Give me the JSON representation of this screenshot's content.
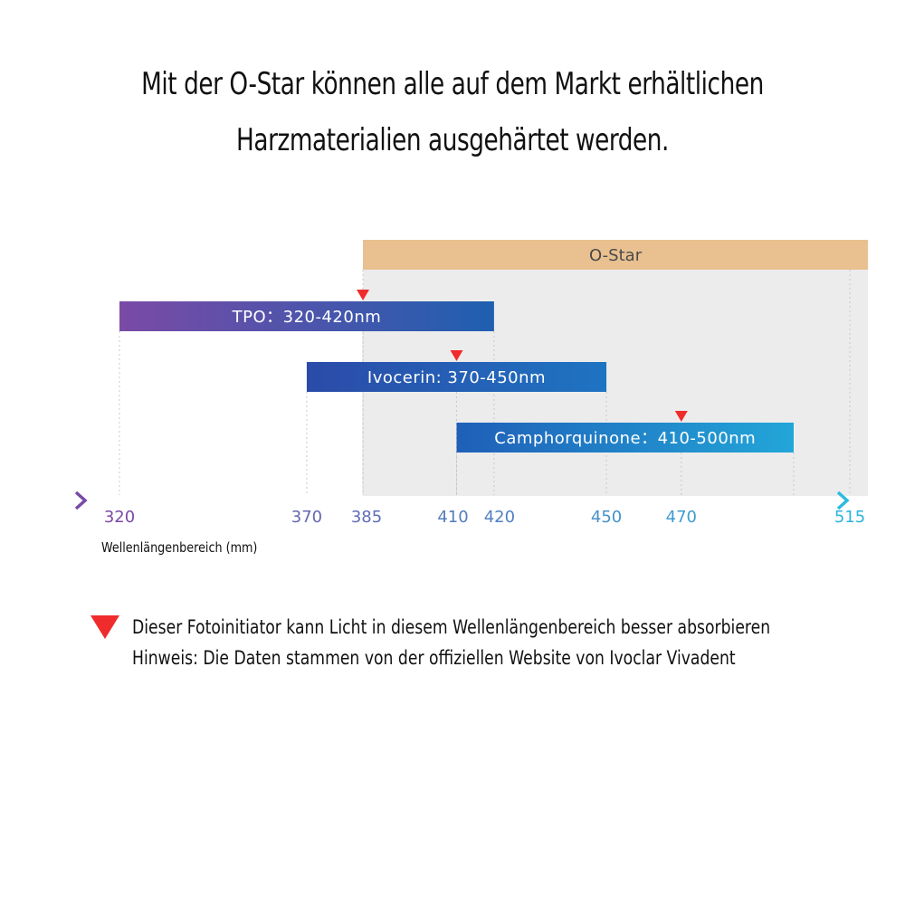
{
  "headline": {
    "line1": "Mit der O-Star können alle auf dem Markt erhältlichen",
    "line2": "Harzmaterialien ausgehärtet werden."
  },
  "chart_data": {
    "type": "range-bar",
    "xlabel": "Wellenlängenbereich (mm)",
    "xlim": [
      300,
      530
    ],
    "x_ticks": [
      320,
      370,
      385,
      410,
      420,
      450,
      470,
      515
    ],
    "band": {
      "label": "O-Star",
      "start": 385,
      "end": 515,
      "color": "#e9c08f"
    },
    "series": [
      {
        "label": "TPO：320-420nm",
        "start": 320,
        "end": 420,
        "peak": 385,
        "color_start": "#7a4aa6",
        "color_end": "#1f5fb0"
      },
      {
        "label": "Ivocerin: 370-450nm",
        "start": 370,
        "end": 450,
        "peak": 410,
        "color_start": "#2b4ba8",
        "color_end": "#1e74c2"
      },
      {
        "label": "Camphorquinone：410-500nm",
        "start": 410,
        "end": 500,
        "peak": 470,
        "color_start": "#1f5fb8",
        "color_end": "#22a6d8"
      }
    ],
    "colors": {
      "peak_marker": "#f02b2b",
      "axis_start": "#7a4aa6",
      "axis_end": "#2bbbe0",
      "tick_start": "#7a4aa6",
      "tick_end": "#2bb4dc"
    }
  },
  "legend": {
    "line1": "Dieser Fotoinitiator kann Licht in diesem Wellenlängenbereich besser absorbieren",
    "line2": "Hinweis: Die Daten stammen von der offiziellen Website von Ivoclar Vivadent",
    "marker_icon": "red-triangle-icon"
  }
}
